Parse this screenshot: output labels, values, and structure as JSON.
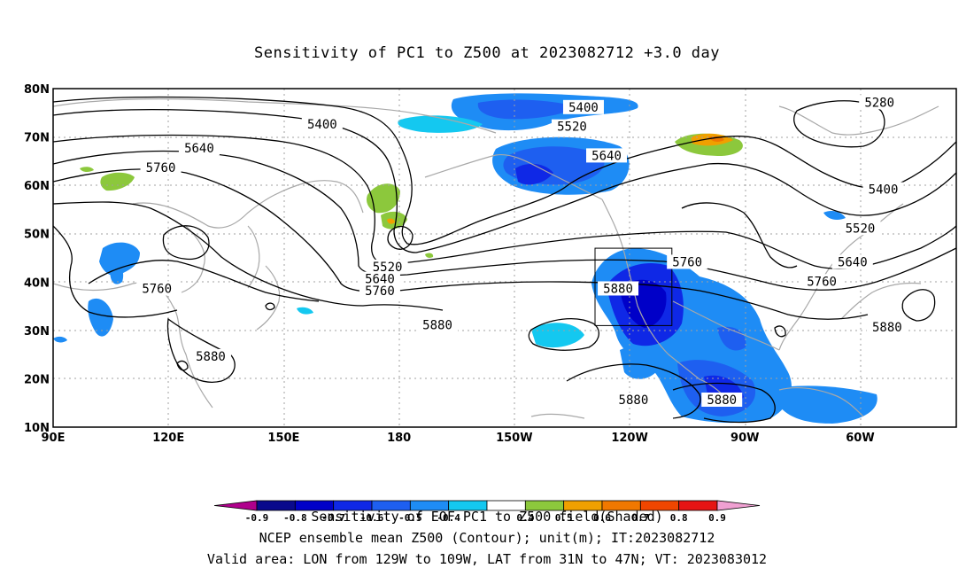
{
  "title": "Sensitivity of PC1 to Z500 at 2023082712 +3.0 day",
  "map": {
    "lon_range": [
      90,
      325
    ],
    "lat_range": [
      10,
      80
    ],
    "lat_ticks": [
      {
        "value": 80,
        "label": "80N"
      },
      {
        "value": 70,
        "label": "70N"
      },
      {
        "value": 60,
        "label": "60N"
      },
      {
        "value": 50,
        "label": "50N"
      },
      {
        "value": 40,
        "label": "40N"
      },
      {
        "value": 30,
        "label": "30N"
      },
      {
        "value": 20,
        "label": "20N"
      },
      {
        "value": 10,
        "label": "10N"
      }
    ],
    "lon_ticks": [
      {
        "value": 90,
        "label": "90E"
      },
      {
        "value": 120,
        "label": "120E"
      },
      {
        "value": 150,
        "label": "150E"
      },
      {
        "value": 180,
        "label": "180"
      },
      {
        "value": 210,
        "label": "150W"
      },
      {
        "value": 240,
        "label": "120W"
      },
      {
        "value": 270,
        "label": "90W"
      },
      {
        "value": 300,
        "label": "60W"
      }
    ],
    "gridlines": true,
    "valid_box": {
      "lon": [
        231,
        251
      ],
      "lat": [
        31,
        47
      ]
    },
    "contour_labels": [
      {
        "text": "5400",
        "lon": 160,
        "lat": 72.5
      },
      {
        "text": "5640",
        "lon": 128,
        "lat": 67.5
      },
      {
        "text": "5760",
        "lon": 118,
        "lat": 63.5
      },
      {
        "text": "5400",
        "lon": 228,
        "lat": 76
      },
      {
        "text": "5520",
        "lon": 225,
        "lat": 72
      },
      {
        "text": "5640",
        "lon": 234,
        "lat": 66
      },
      {
        "text": "5280",
        "lon": 305,
        "lat": 77
      },
      {
        "text": "5400",
        "lon": 306,
        "lat": 59
      },
      {
        "text": "5520",
        "lon": 300,
        "lat": 51
      },
      {
        "text": "5640",
        "lon": 298,
        "lat": 44
      },
      {
        "text": "5760",
        "lon": 290,
        "lat": 40
      },
      {
        "text": "5880",
        "lon": 307,
        "lat": 30.5
      },
      {
        "text": "5760",
        "lon": 255,
        "lat": 44
      },
      {
        "text": "5880",
        "lon": 237,
        "lat": 38.5
      },
      {
        "text": "5520",
        "lon": 177,
        "lat": 43
      },
      {
        "text": "5640",
        "lon": 175,
        "lat": 40.5
      },
      {
        "text": "5760",
        "lon": 175,
        "lat": 38
      },
      {
        "text": "5880",
        "lon": 190,
        "lat": 31
      },
      {
        "text": "5760",
        "lon": 117,
        "lat": 38.5
      },
      {
        "text": "5880",
        "lon": 131,
        "lat": 24.5
      },
      {
        "text": "5880",
        "lon": 241,
        "lat": 15.5
      },
      {
        "text": "5880",
        "lon": 264,
        "lat": 15.5
      }
    ]
  },
  "colorbar": {
    "labels": [
      "-0.9",
      "-0.8",
      "-0.7",
      "-0.6",
      "-0.5",
      "-0.4",
      "0.4",
      "0.5",
      "0.6",
      "0.7",
      "0.8",
      "0.9"
    ],
    "colors": [
      "#b0008c",
      "#0a0a8c",
      "#0000c8",
      "#0f28e6",
      "#1e5ff0",
      "#1e8cf5",
      "#14c8f0",
      "#ffffff",
      "#8cc83c",
      "#f0a000",
      "#f07800",
      "#f04600",
      "#e61414",
      "#f0a0d2"
    ]
  },
  "footer": {
    "line1": "Sensitivity of EOF PC1 to Z500 field(Shaded)",
    "line2": "NCEP ensemble mean Z500 (Contour); unit(m); IT:2023082712",
    "line3": "Valid area: LON from 129W to 109W, LAT from 31N to 47N; VT: 2023083012"
  }
}
